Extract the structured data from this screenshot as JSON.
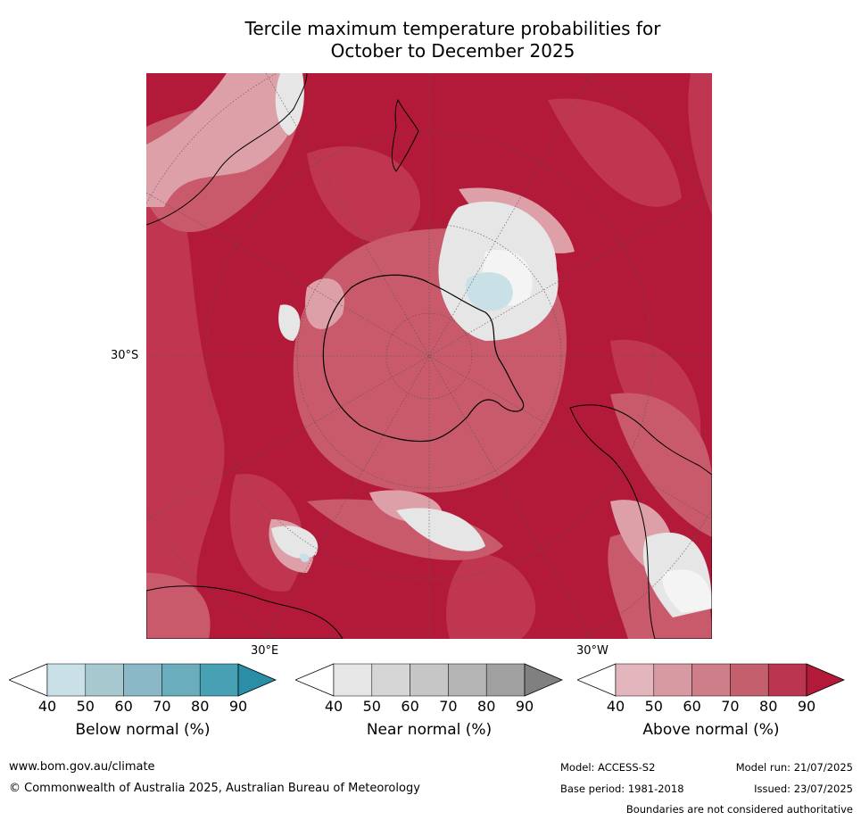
{
  "title_line1": "Tercile maximum temperature probabilities for",
  "title_line2": "October to December 2025",
  "map": {
    "projection": "south-polar-stereographic",
    "graticule_labels": {
      "lat": "30°S",
      "lon_east": "30°E",
      "lon_west": "30°W"
    },
    "colors": {
      "above_90": "#b31a3a",
      "above_80": "#c03650",
      "above_70": "#c95a6c",
      "above_60": "#d47a88",
      "above_50": "#dea0a8",
      "near": "#e6e6e6",
      "below_50": "#c8e0e6",
      "coast": "#000000"
    }
  },
  "colorbars": [
    {
      "label": "Below normal (%)",
      "ticks": [
        "40",
        "50",
        "60",
        "70",
        "80",
        "90"
      ],
      "colors": [
        "#c8e0e6",
        "#a8c8d0",
        "#8ab8c6",
        "#6aaebe",
        "#48a0b4",
        "#2a8ea6"
      ]
    },
    {
      "label": "Near normal (%)",
      "ticks": [
        "40",
        "50",
        "60",
        "70",
        "80",
        "90"
      ],
      "colors": [
        "#e6e6e6",
        "#d6d6d6",
        "#c6c6c6",
        "#b4b4b4",
        "#a0a0a0",
        "#808080"
      ]
    },
    {
      "label": "Above normal (%)",
      "ticks": [
        "40",
        "50",
        "60",
        "70",
        "80",
        "90"
      ],
      "colors": [
        "#e2b6bc",
        "#d89aa2",
        "#ce7e88",
        "#c4606e",
        "#bc3550",
        "#b31a3a"
      ]
    }
  ],
  "footer": {
    "website": "www.bom.gov.au/climate",
    "copyright": "© Commonwealth of Australia 2025, Australian Bureau of Meteorology",
    "model": "Model: ACCESS-S2",
    "model_run": "Model run: 21/07/2025",
    "base_period": "Base period: 1981-2018",
    "issued": "Issued: 23/07/2025",
    "disclaimer": "Boundaries are not considered authoritative"
  }
}
